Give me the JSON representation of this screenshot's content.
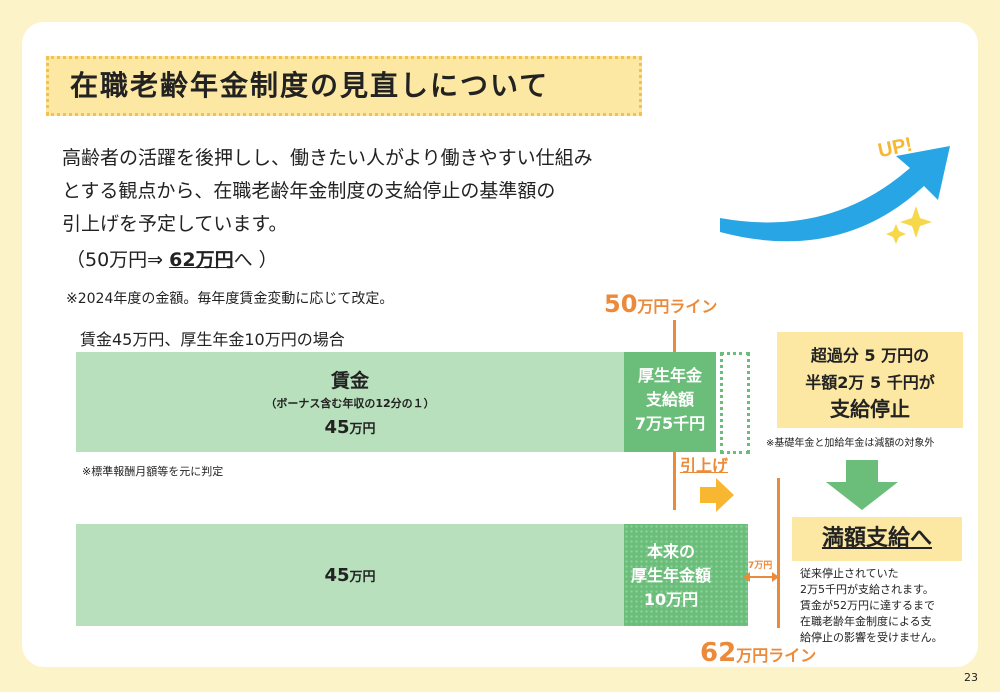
{
  "title": "在職老齢年金制度の見直しについて",
  "intro": {
    "lines": [
      "高齢者の活躍を後押しし、働きたい人がより働きやすい仕組み",
      "とする観点から、在職老齢年金制度の支給停止の基準額の",
      "引上げを予定しています。"
    ],
    "change_prefix": "（50万円⇒ ",
    "change_emph": "62万円",
    "change_suffix": "へ ）",
    "note": "※2024年度の金額。毎年度賃金変動に応じて改定。"
  },
  "case_label": "賃金45万円、厚生年金10万円の場合",
  "line50": {
    "num": "50",
    "unit": "万円ライン"
  },
  "line62": {
    "num": "62",
    "unit": "万円ライン"
  },
  "bar1": {
    "wage_title": "賃金",
    "wage_sub": "（ボーナス含む年収の12分の１）",
    "wage_num": "45",
    "wage_unit": "万円",
    "pension_l1": "厚生年金",
    "pension_l2": "支給額",
    "pension_l3": "7万5千円",
    "note": "※標準報酬月額等を元に判定"
  },
  "raise_label": "引上げ",
  "bar2": {
    "wage_num": "45",
    "wage_unit": "万円",
    "pension_l1": "本来の",
    "pension_l2": "厚生年金額",
    "pension_l3": "10万円",
    "diff_label": "7万円"
  },
  "stop_box": {
    "l1": "超過分 5 万円の",
    "l2": "半額2万 5 千円が",
    "l3": "支給停止"
  },
  "stop_note": "※基礎年金と加給年金は減額の対象外",
  "full_payment": "満額支給へ",
  "full_text": [
    "従来停止されていた",
    "2万5千円が支給されます。",
    "賃金が52万円に達するまで",
    "在職老齢年金制度による支",
    "給停止の影響を受けません。"
  ],
  "up_label": "UP!",
  "page_number": "23",
  "colors": {
    "accent_orange": "#ec8a3a",
    "wage_green": "#b8e0bd",
    "pension_green": "#6bbd7a",
    "highlight_yellow": "#fce7a3",
    "up_blue": "#27a5e4"
  }
}
